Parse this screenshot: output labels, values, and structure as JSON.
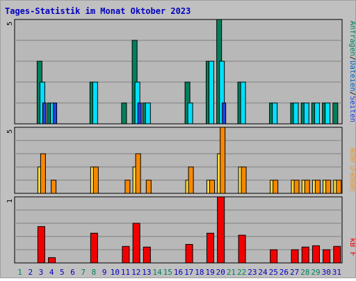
{
  "title": "Tages-Statistik im Monat Oktober 2023",
  "colors": {
    "title": "#0000c0",
    "plot_bg": "#b8b8b8",
    "grid": "#808080",
    "hits": "#00805c",
    "files": "#00e0ff",
    "pages": "#2040e0",
    "visits": "#f88800",
    "sites": "#ffe040",
    "kbytes": "#f00000",
    "weekend_label": "#00805c",
    "weekday_label": "#0000c0"
  },
  "chart_data": [
    {
      "type": "bar",
      "title": "Tages-Statistik im Monat Oktober 2023",
      "y_tick": "5",
      "legend_text": "Anfragen/Dateien/Seiten",
      "legend_parts": [
        {
          "text": "Anfragen",
          "color": "#00805c"
        },
        {
          "text": "/",
          "color": "#000000"
        },
        {
          "text": "Dateien",
          "color": "#0060c0"
        },
        {
          "text": "/",
          "color": "#000000"
        },
        {
          "text": "Seiten",
          "color": "#2040e0"
        }
      ],
      "ylim": [
        0,
        5
      ],
      "categories": [
        "1",
        "2",
        "3",
        "4",
        "5",
        "6",
        "7",
        "8",
        "9",
        "10",
        "11",
        "12",
        "13",
        "14",
        "15",
        "16",
        "17",
        "18",
        "19",
        "20",
        "21",
        "22",
        "23",
        "24",
        "25",
        "26",
        "27",
        "28",
        "29",
        "30",
        "31"
      ],
      "series": [
        {
          "name": "Anfragen",
          "values": [
            0,
            0,
            3,
            1,
            0,
            0,
            0,
            2,
            0,
            0,
            1,
            4,
            1,
            0,
            0,
            0,
            2,
            0,
            3,
            5,
            0,
            2,
            0,
            0,
            1,
            0,
            1,
            1,
            1,
            1,
            1
          ]
        },
        {
          "name": "Dateien",
          "values": [
            0,
            0,
            2,
            1,
            0,
            0,
            0,
            2,
            0,
            0,
            0,
            2,
            1,
            0,
            0,
            0,
            1,
            0,
            3,
            3,
            0,
            2,
            0,
            0,
            1,
            0,
            1,
            1,
            1,
            1,
            0
          ]
        },
        {
          "name": "Seiten",
          "values": [
            0,
            0,
            1,
            1,
            0,
            0,
            0,
            0,
            0,
            0,
            0,
            1,
            0,
            0,
            0,
            0,
            0,
            0,
            0,
            1,
            0,
            0,
            0,
            0,
            0,
            0,
            0,
            0,
            0,
            0,
            0
          ]
        }
      ]
    },
    {
      "type": "bar",
      "y_tick": "5",
      "legend_text": "Rechner (IP-Adressen)",
      "ylim": [
        0,
        5
      ],
      "series": [
        {
          "name": "Rechner",
          "values": [
            0,
            0,
            2,
            0,
            0,
            0,
            0,
            2,
            0,
            0,
            0,
            2,
            0,
            0,
            0,
            0,
            1,
            0,
            1,
            3,
            0,
            2,
            0,
            0,
            1,
            0,
            1,
            1,
            1,
            1,
            1
          ]
        },
        {
          "name": "Besuche",
          "values": [
            0,
            0,
            3,
            1,
            0,
            0,
            0,
            2,
            0,
            0,
            1,
            3,
            1,
            0,
            0,
            0,
            2,
            0,
            1,
            5,
            0,
            2,
            0,
            0,
            1,
            0,
            1,
            1,
            1,
            1,
            1
          ]
        }
      ]
    },
    {
      "type": "bar",
      "y_tick": "1",
      "legend_text": "kB F",
      "ylim": [
        0,
        1
      ],
      "series": [
        {
          "name": "kB F",
          "values": [
            0,
            0,
            0.55,
            0.08,
            0,
            0,
            0,
            0.45,
            0,
            0,
            0.25,
            0.6,
            0.24,
            0,
            0,
            0,
            0.28,
            0,
            0.45,
            1.0,
            0,
            0.42,
            0,
            0,
            0.2,
            0,
            0.2,
            0.24,
            0.26,
            0.2,
            0.25
          ]
        }
      ]
    }
  ],
  "weekend_days": [
    1,
    7,
    8,
    14,
    15,
    21,
    22,
    28,
    29
  ]
}
